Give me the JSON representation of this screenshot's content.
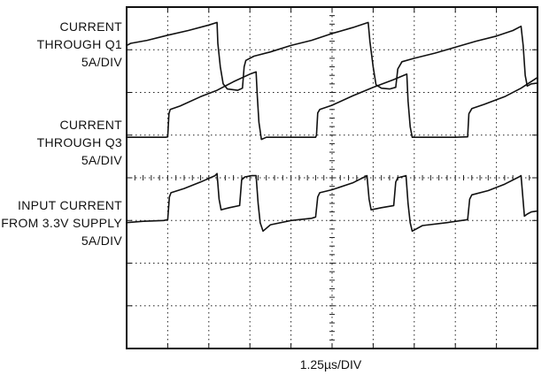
{
  "chart_data": {
    "type": "line",
    "xlabel": "1.25µs/DIV",
    "grid": true,
    "divisions": {
      "x": 10,
      "y": 8
    },
    "xlim": [
      0,
      10
    ],
    "ylim": [
      0,
      8
    ],
    "series": [
      {
        "name": "CURRENT THROUGH Q1 5A/DIV",
        "label_lines": [
          "CURRENT",
          "THROUGH Q1",
          "5A/DIV"
        ],
        "color": "#111111",
        "points": [
          [
            0.0,
            7.1
          ],
          [
            0.1,
            7.15
          ],
          [
            0.5,
            7.22
          ],
          [
            1.0,
            7.34
          ],
          [
            1.5,
            7.45
          ],
          [
            2.0,
            7.58
          ],
          [
            2.2,
            7.64
          ],
          [
            2.22,
            7.15
          ],
          [
            2.28,
            6.6
          ],
          [
            2.35,
            6.2
          ],
          [
            2.45,
            6.08
          ],
          [
            2.7,
            6.05
          ],
          [
            2.82,
            6.1
          ],
          [
            2.86,
            6.6
          ],
          [
            2.9,
            6.75
          ],
          [
            3.1,
            6.85
          ],
          [
            3.5,
            6.95
          ],
          [
            4.0,
            7.1
          ],
          [
            4.5,
            7.22
          ],
          [
            5.0,
            7.38
          ],
          [
            5.5,
            7.52
          ],
          [
            5.88,
            7.64
          ],
          [
            5.92,
            7.2
          ],
          [
            6.0,
            6.6
          ],
          [
            6.07,
            6.18
          ],
          [
            6.2,
            6.1
          ],
          [
            6.4,
            6.08
          ],
          [
            6.55,
            6.12
          ],
          [
            6.6,
            6.55
          ],
          [
            6.7,
            6.72
          ],
          [
            7.0,
            6.8
          ],
          [
            7.5,
            6.92
          ],
          [
            8.0,
            7.06
          ],
          [
            8.5,
            7.2
          ],
          [
            9.0,
            7.32
          ],
          [
            9.4,
            7.45
          ],
          [
            9.6,
            7.55
          ],
          [
            9.65,
            7.1
          ],
          [
            9.7,
            6.4
          ],
          [
            9.75,
            6.15
          ],
          [
            9.85,
            6.2
          ],
          [
            10.0,
            6.22
          ]
        ]
      },
      {
        "name": "CURRENT THROUGH Q3 5A/DIV",
        "label_lines": [
          "CURRENT",
          "THROUGH Q3",
          "5A/DIV"
        ],
        "color": "#111111",
        "points": [
          [
            0.0,
            4.95
          ],
          [
            0.5,
            4.95
          ],
          [
            0.95,
            4.95
          ],
          [
            1.0,
            4.96
          ],
          [
            1.03,
            5.5
          ],
          [
            1.06,
            5.6
          ],
          [
            1.3,
            5.68
          ],
          [
            1.8,
            5.9
          ],
          [
            2.2,
            6.05
          ],
          [
            2.6,
            6.25
          ],
          [
            3.0,
            6.43
          ],
          [
            3.15,
            6.48
          ],
          [
            3.18,
            5.9
          ],
          [
            3.22,
            5.3
          ],
          [
            3.28,
            4.9
          ],
          [
            3.4,
            4.95
          ],
          [
            4.0,
            4.95
          ],
          [
            4.6,
            4.95
          ],
          [
            4.62,
            5.0
          ],
          [
            4.65,
            5.52
          ],
          [
            4.7,
            5.6
          ],
          [
            5.0,
            5.7
          ],
          [
            5.5,
            5.92
          ],
          [
            6.0,
            6.12
          ],
          [
            6.5,
            6.3
          ],
          [
            6.82,
            6.43
          ],
          [
            6.85,
            5.8
          ],
          [
            6.9,
            5.2
          ],
          [
            6.95,
            4.95
          ],
          [
            7.5,
            4.95
          ],
          [
            8.0,
            4.95
          ],
          [
            8.3,
            4.96
          ],
          [
            8.33,
            5.5
          ],
          [
            8.4,
            5.62
          ],
          [
            8.7,
            5.72
          ],
          [
            9.2,
            5.9
          ],
          [
            9.6,
            6.1
          ],
          [
            10.0,
            6.35
          ]
        ]
      },
      {
        "name": "INPUT CURRENT FROM 3.3V SUPPLY 5A/DIV",
        "label_lines": [
          "INPUT CURRENT",
          "FROM 3.3V SUPPLY",
          "5A/DIV"
        ],
        "color": "#111111",
        "points": [
          [
            0.0,
            2.95
          ],
          [
            0.4,
            2.98
          ],
          [
            0.9,
            3.0
          ],
          [
            1.0,
            3.02
          ],
          [
            1.04,
            3.55
          ],
          [
            1.08,
            3.65
          ],
          [
            1.4,
            3.75
          ],
          [
            1.8,
            3.9
          ],
          [
            2.15,
            4.05
          ],
          [
            2.2,
            4.1
          ],
          [
            2.25,
            3.5
          ],
          [
            2.3,
            3.25
          ],
          [
            2.5,
            3.3
          ],
          [
            2.75,
            3.35
          ],
          [
            2.8,
            3.95
          ],
          [
            2.88,
            4.02
          ],
          [
            3.05,
            4.05
          ],
          [
            3.15,
            4.05
          ],
          [
            3.2,
            3.4
          ],
          [
            3.25,
            2.95
          ],
          [
            3.32,
            2.75
          ],
          [
            3.5,
            2.9
          ],
          [
            4.0,
            3.0
          ],
          [
            4.5,
            3.05
          ],
          [
            4.6,
            3.08
          ],
          [
            4.65,
            3.55
          ],
          [
            4.7,
            3.65
          ],
          [
            5.0,
            3.72
          ],
          [
            5.5,
            3.88
          ],
          [
            5.85,
            4.05
          ],
          [
            5.9,
            3.5
          ],
          [
            5.95,
            3.25
          ],
          [
            6.2,
            3.3
          ],
          [
            6.5,
            3.35
          ],
          [
            6.55,
            3.9
          ],
          [
            6.6,
            4.0
          ],
          [
            6.8,
            4.05
          ],
          [
            6.85,
            3.4
          ],
          [
            6.9,
            2.95
          ],
          [
            6.95,
            2.75
          ],
          [
            7.2,
            2.88
          ],
          [
            7.8,
            2.95
          ],
          [
            8.3,
            3.02
          ],
          [
            8.35,
            3.5
          ],
          [
            8.4,
            3.6
          ],
          [
            8.8,
            3.7
          ],
          [
            9.2,
            3.85
          ],
          [
            9.55,
            4.02
          ],
          [
            9.6,
            4.05
          ],
          [
            9.65,
            3.45
          ],
          [
            9.68,
            3.1
          ],
          [
            9.75,
            3.15
          ],
          [
            9.85,
            3.2
          ],
          [
            10.0,
            3.22
          ]
        ]
      }
    ]
  }
}
